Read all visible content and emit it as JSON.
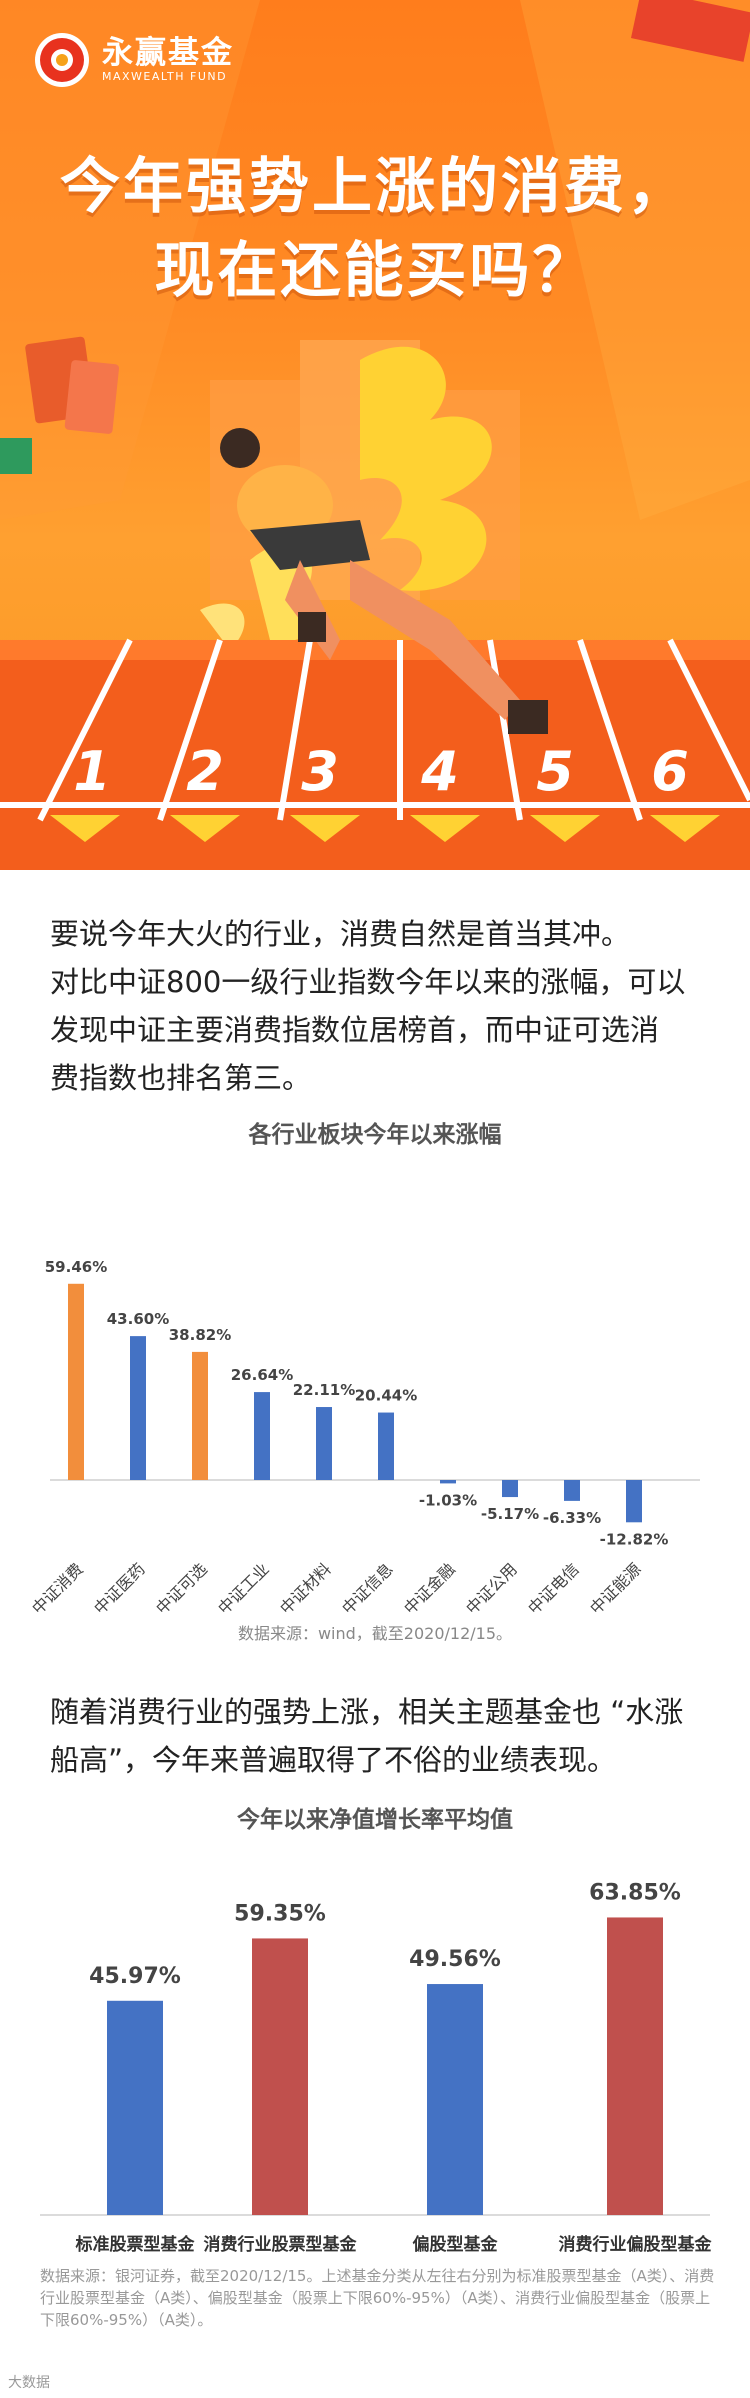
{
  "brand": {
    "name_cn": "永赢基金",
    "name_en": "MAXWEALTH FUND"
  },
  "hero": {
    "title_line1": "今年强势上涨的消费，",
    "title_line2": "现在还能买吗？",
    "lane_numbers": [
      "1",
      "2",
      "3",
      "4",
      "5",
      "6"
    ]
  },
  "paragraph1": {
    "lines": [
      "要说今年大火的行业，消费自然是首当其冲。",
      "对比中证800一级行业指数今年以来的涨幅，可以",
      "发现中证主要消费指数位居榜首，而中证可选消",
      "费指数也排名第三。"
    ]
  },
  "chart_data": [
    {
      "type": "bar",
      "title": "各行业板块今年以来涨幅",
      "categories": [
        "中证消费",
        "中证医药",
        "中证可选",
        "中证工业",
        "中证材料",
        "中证信息",
        "中证金融",
        "中证公用",
        "中证电信",
        "中证能源"
      ],
      "values": [
        59.46,
        43.6,
        38.82,
        26.64,
        22.11,
        20.44,
        -1.03,
        -5.17,
        -6.33,
        -12.82
      ],
      "value_labels": [
        "59.46%",
        "43.60%",
        "38.82%",
        "26.64%",
        "22.11%",
        "20.44%",
        "-1.03%",
        "-5.17%",
        "-6.33%",
        "-12.82%"
      ],
      "colors": [
        "#f28e3c",
        "#4472c4",
        "#f28e3c",
        "#4472c4",
        "#4472c4",
        "#4472c4",
        "#4472c4",
        "#4472c4",
        "#4472c4",
        "#4472c4"
      ],
      "ylim": [
        -15,
        65
      ],
      "source": "数据来源：wind，截至2020/12/15。"
    },
    {
      "type": "bar",
      "title": "今年以来净值增长率平均值",
      "categories": [
        "标准股票型基金",
        "消费行业股票型基金",
        "偏股型基金",
        "消费行业偏股型基金"
      ],
      "values": [
        45.97,
        59.35,
        49.56,
        63.85
      ],
      "value_labels": [
        "45.97%",
        "59.35%",
        "49.56%",
        "63.85%"
      ],
      "colors": [
        "#4472c4",
        "#c0504d",
        "#4472c4",
        "#c0504d"
      ],
      "ylim": [
        0,
        70
      ]
    }
  ],
  "paragraph2": {
    "lines": [
      "随着消费行业的强势上涨，相关主题基金也 “水涨",
      "船高”，今年来普遍取得了不俗的业绩表现。"
    ]
  },
  "note2": "数据来源：银河证券，截至2020/12/15。上述基金分类从左往右分别为标准股票型基金（A类）、消费行业股票型基金（A类）、偏股型基金（股票上下限60%-95%）（A类）、消费行业偏股型基金（股票上下限60%-95%）（A类）。",
  "watermark": "大数据"
}
